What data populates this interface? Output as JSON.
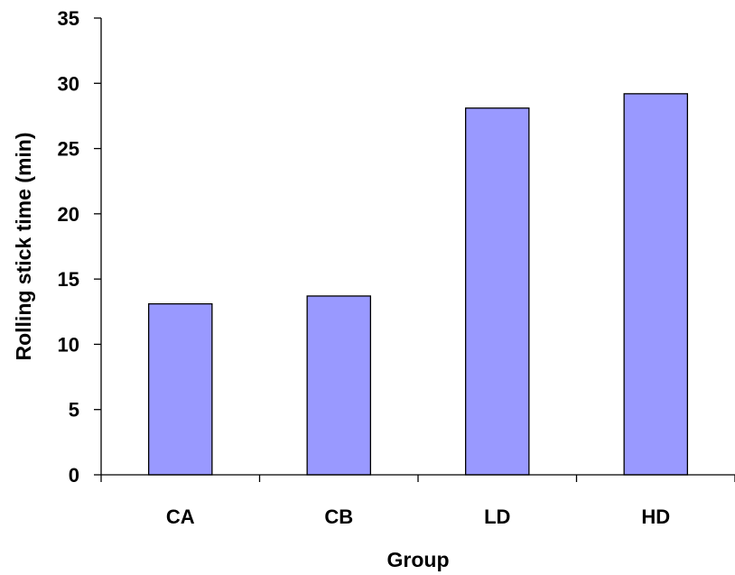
{
  "chart_data": {
    "type": "bar",
    "categories": [
      "CA",
      "CB",
      "LD",
      "HD"
    ],
    "values": [
      13.1,
      13.7,
      28.1,
      29.2
    ],
    "xlabel": "Group",
    "ylabel": "Rolling stick time (min)",
    "ylim": [
      0,
      35
    ],
    "yticks": [
      0,
      5,
      10,
      15,
      20,
      25,
      30,
      35
    ],
    "grid": false,
    "legend": "none",
    "bar_color": "#9999FF",
    "bar_edge_color": "#000000"
  }
}
